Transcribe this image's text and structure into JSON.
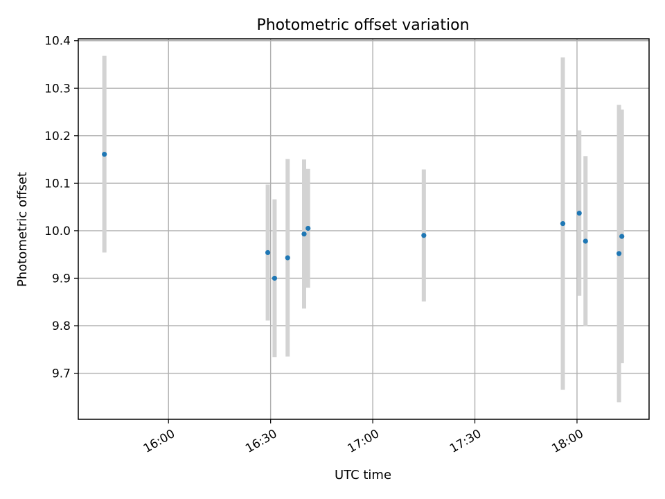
{
  "chart_data": {
    "type": "scatter",
    "title": "Photometric offset variation",
    "xlabel": "UTC time",
    "ylabel": "Photometric offset",
    "x_ticks": [
      "16:00",
      "16:30",
      "17:00",
      "17:30",
      "18:00"
    ],
    "y_ticks": [
      "9.7",
      "9.8",
      "9.9",
      "10.0",
      "10.1",
      "10.2",
      "10.3",
      "10.4"
    ],
    "xlim": [
      "15:33:30",
      "18:21:10"
    ],
    "ylim": [
      9.603,
      10.404
    ],
    "grid": true,
    "colors": {
      "points": "#1f77b4",
      "errorbars": "#d3d3d3",
      "grid": "#b0b0b0"
    },
    "points": [
      {
        "x": "15:41:10",
        "y": 10.161,
        "yerr": 0.207
      },
      {
        "x": "16:29:10",
        "y": 9.954,
        "yerr": 0.143
      },
      {
        "x": "16:31:10",
        "y": 9.9,
        "yerr": 0.166
      },
      {
        "x": "16:35:00",
        "y": 9.943,
        "yerr": 0.208
      },
      {
        "x": "16:39:50",
        "y": 9.993,
        "yerr": 0.157
      },
      {
        "x": "16:41:00",
        "y": 10.005,
        "yerr": 0.125
      },
      {
        "x": "17:15:00",
        "y": 9.99,
        "yerr": 0.139
      },
      {
        "x": "17:55:50",
        "y": 10.015,
        "yerr": 0.35
      },
      {
        "x": "18:00:40",
        "y": 10.037,
        "yerr": 0.174
      },
      {
        "x": "18:02:30",
        "y": 9.978,
        "yerr": 0.179
      },
      {
        "x": "18:12:20",
        "y": 9.952,
        "yerr": 0.313
      },
      {
        "x": "18:13:10",
        "y": 9.988,
        "yerr": 0.267
      }
    ]
  }
}
